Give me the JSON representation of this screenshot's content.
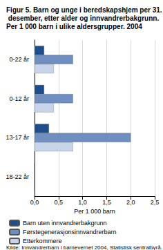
{
  "chart_data": {
    "type": "bar",
    "orientation": "horizontal",
    "title": "Figur 5. Barn og unge i beredskapshjem per 31. desember, etter alder og innvandrerbakgrunn. Per 1 000 barn i ulike aldersgrupper. 2004",
    "x_label": "Per 1 000 barn",
    "source": "Kilde: Innvandrerbarn i barnevernet 2004, Statistisk sentralbyrå.",
    "categories": [
      "0-22 år",
      "0-12 år",
      "13-17 år",
      "18-22 år"
    ],
    "series": [
      {
        "name": "Barn uten innvandrerbakgrunn",
        "color": "#1f4e8c",
        "values": [
          0.2,
          0.2,
          0.3,
          0
        ]
      },
      {
        "name": "Førstegenerasjonsinnvandrerbarn",
        "color": "#6f8fc0",
        "values": [
          0.8,
          0.8,
          2.0,
          0
        ]
      },
      {
        "name": "Etterkommere",
        "color": "#c8d4ea",
        "values": [
          0.4,
          0.4,
          0.8,
          0
        ]
      }
    ],
    "xlim": [
      0,
      2.5
    ],
    "xticks": [
      {
        "value": 0,
        "label": "0,0"
      },
      {
        "value": 0.5,
        "label": "0,5"
      },
      {
        "value": 1,
        "label": "1,0"
      },
      {
        "value": 1.5,
        "label": "1,5"
      },
      {
        "value": 2,
        "label": "2,0"
      },
      {
        "value": 2.5,
        "label": "2,5"
      }
    ],
    "grid": true,
    "legend": "bottom"
  }
}
